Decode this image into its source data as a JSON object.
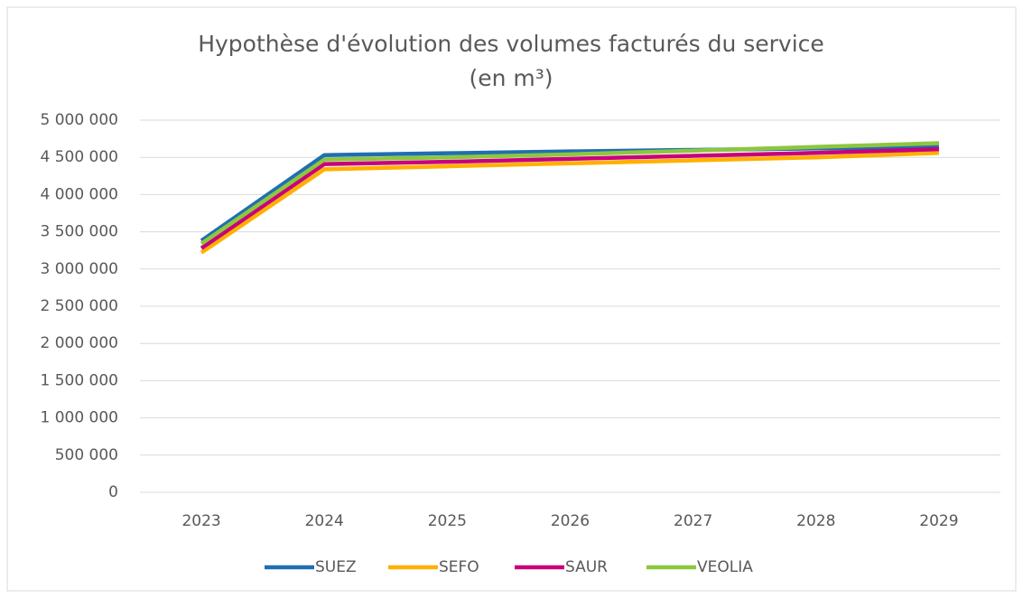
{
  "chart_data": {
    "type": "line",
    "title": [
      "Hypothèse d'évolution des volumes facturés du service",
      "(en m³)"
    ],
    "categories": [
      "2023",
      "2024",
      "2025",
      "2026",
      "2027",
      "2028",
      "2029"
    ],
    "series": [
      {
        "name": "SUEZ",
        "color": "#1f6fb0",
        "values": [
          3380000,
          4530000,
          4555000,
          4580000,
          4600000,
          4620000,
          4640000
        ]
      },
      {
        "name": "SEFO",
        "color": "#ffb000",
        "values": [
          3220000,
          4340000,
          4380000,
          4420000,
          4460000,
          4500000,
          4560000
        ]
      },
      {
        "name": "SAUR",
        "color": "#c8007a",
        "values": [
          3280000,
          4410000,
          4440000,
          4480000,
          4520000,
          4560000,
          4610000
        ]
      },
      {
        "name": "VEOLIA",
        "color": "#8dc63f",
        "values": [
          3340000,
          4470000,
          4500000,
          4540000,
          4590000,
          4640000,
          4690000
        ]
      }
    ],
    "ylim": [
      0,
      5000000
    ],
    "yticks": [
      0,
      {
        "value": 500000,
        "label": "500 000"
      },
      {
        "value": 1000000,
        "label": "1 000 000"
      },
      {
        "value": 1500000,
        "label": "1 500 000"
      },
      {
        "value": 2000000,
        "label": "2 000 000"
      },
      {
        "value": 2500000,
        "label": "2 500 000"
      },
      {
        "value": 3000000,
        "label": "3 000 000"
      },
      {
        "value": 3500000,
        "label": "3 500 000"
      },
      {
        "value": 4000000,
        "label": "4 000 000"
      },
      {
        "value": 4500000,
        "label": "4 500 000"
      },
      {
        "value": 5000000,
        "label": "5 000 000"
      }
    ],
    "grid": true,
    "legend": "bottom"
  }
}
